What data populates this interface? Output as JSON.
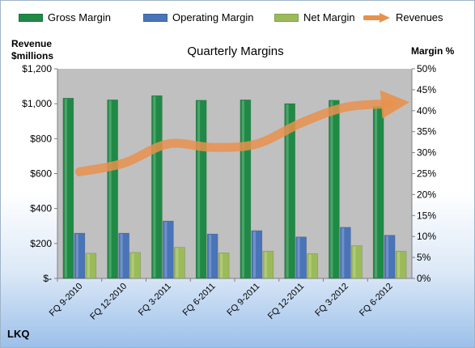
{
  "legend": {
    "gross": "Gross Margin",
    "operating": "Operating Margin",
    "net": "Net Margin",
    "revenues": "Revenues"
  },
  "left_axis_title_line1": "Revenue",
  "left_axis_title_line2": "$millions",
  "right_axis_title": "Margin %",
  "brand": "LKQ",
  "colors": {
    "gross": "#1f8a45",
    "operating": "#4a74b8",
    "net": "#9bbb59",
    "revenues": "#e8914c",
    "plot_bg": "#c0c0c0"
  },
  "chart_data": {
    "type": "bar",
    "title": "Quarterly Margins",
    "categories": [
      "FQ 9-2010",
      "FQ 12-2010",
      "FQ 3-2011",
      "FQ 6-2011",
      "FQ 9-2011",
      "FQ 12-2011",
      "FQ 3-2012",
      "FQ 6-2012"
    ],
    "series": [
      {
        "name": "Gross Margin",
        "axis": "right",
        "values": [
          43.0,
          42.6,
          43.6,
          42.5,
          42.6,
          41.7,
          42.5,
          41.0
        ]
      },
      {
        "name": "Operating Margin",
        "axis": "right",
        "values": [
          10.8,
          10.8,
          13.7,
          10.6,
          11.4,
          9.9,
          12.2,
          10.3
        ]
      },
      {
        "name": "Net Margin",
        "axis": "right",
        "values": [
          6.0,
          6.2,
          7.4,
          6.1,
          6.5,
          5.9,
          7.8,
          6.5
        ]
      },
      {
        "name": "Revenues",
        "type": "line",
        "axis": "left",
        "values": [
          610,
          660,
          770,
          750,
          770,
          890,
          980,
          1000
        ]
      }
    ],
    "ylim_left": [
      0,
      1200
    ],
    "yticks_left": [
      "$-",
      "$200",
      "$400",
      "$600",
      "$800",
      "$1,000",
      "$1,200"
    ],
    "ylim_right": [
      0,
      50
    ],
    "yticks_right": [
      "0%",
      "5%",
      "10%",
      "15%",
      "20%",
      "25%",
      "30%",
      "35%",
      "40%",
      "45%",
      "50%"
    ],
    "grid": false,
    "legend_position": "top"
  }
}
